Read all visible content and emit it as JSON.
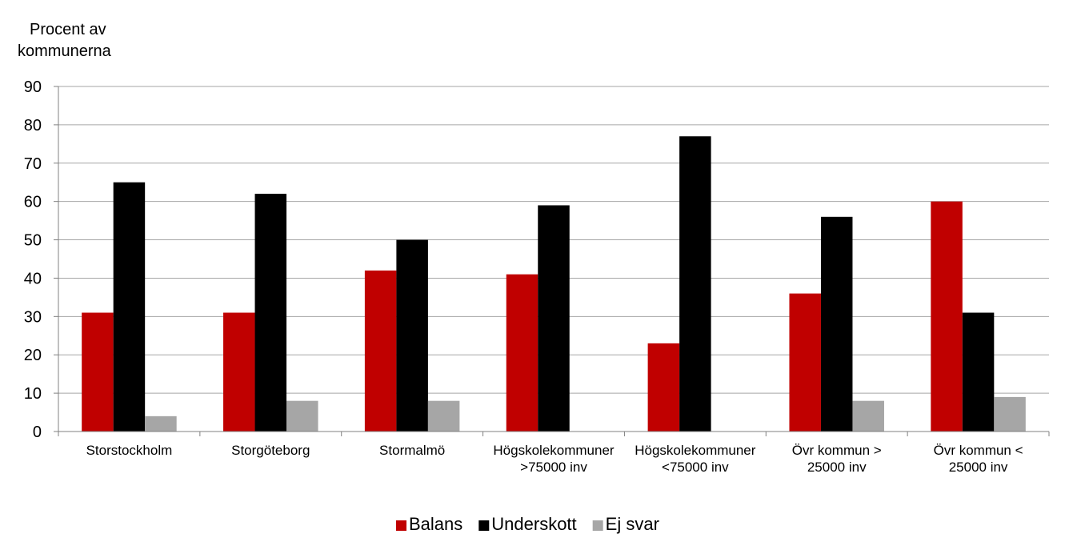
{
  "chart_data": {
    "type": "bar",
    "ylabel": [
      "Procent av",
      "kommunerna"
    ],
    "ylim": [
      0,
      90
    ],
    "yticks": [
      0,
      10,
      20,
      30,
      40,
      50,
      60,
      70,
      80,
      90
    ],
    "grid": true,
    "legend_position": "bottom",
    "categories": [
      [
        "Storstockholm"
      ],
      [
        "Storgöteborg"
      ],
      [
        "Stormalmö"
      ],
      [
        "Högskolekommuner",
        ">75000 inv"
      ],
      [
        "Högskolekommuner",
        "<75000 inv"
      ],
      [
        "Övr kommun >",
        "25000 inv"
      ],
      [
        "Övr kommun <",
        "25000 inv"
      ]
    ],
    "series": [
      {
        "name": "Balans",
        "color": "#c00000",
        "values": [
          31,
          31,
          42,
          41,
          23,
          36,
          60
        ]
      },
      {
        "name": "Underskott",
        "color": "#000000",
        "values": [
          65,
          62,
          50,
          59,
          77,
          56,
          31
        ]
      },
      {
        "name": "Ej svar",
        "color": "#a6a6a6",
        "values": [
          4,
          8,
          8,
          0,
          0,
          8,
          9
        ]
      }
    ]
  }
}
